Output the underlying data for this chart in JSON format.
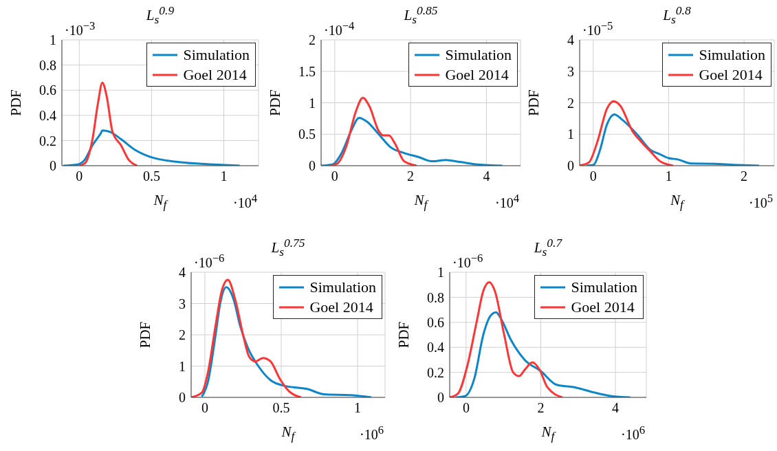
{
  "chart_data": [
    {
      "type": "line",
      "title": "L$_{s}$$^{0.9}$",
      "xlabel": "N$_{f}$",
      "ylabel": "PDF",
      "annotations": [
        "·10$^{−3}$",
        "·10$^{4}$"
      ],
      "xlim": [
        -0.12,
        1.24
      ],
      "xticks": [
        0,
        0.5,
        1
      ],
      "ylim": [
        0,
        1
      ],
      "yticks": [
        0,
        0.2,
        0.4,
        0.6,
        0.8,
        1
      ],
      "grid": true,
      "legend": "top right",
      "marker": "none",
      "line_style": "solid",
      "series": [
        {
          "name": "Simulation",
          "color": "#0b86c9",
          "x": [
            -0.11,
            -0.01,
            0.04,
            0.09,
            0.15,
            0.16,
            0.21,
            0.29,
            0.38,
            0.49,
            0.68,
            0.93,
            1.11
          ],
          "values": [
            0,
            0.01,
            0.05,
            0.16,
            0.26,
            0.28,
            0.27,
            0.21,
            0.13,
            0.07,
            0.03,
            0.01,
            0
          ]
        },
        {
          "name": "Goel 2014",
          "color": "#ff3535",
          "x": [
            0,
            0.04,
            0.09,
            0.13,
            0.16,
            0.19,
            0.23,
            0.29,
            0.34,
            0.4
          ],
          "values": [
            0,
            0.02,
            0.2,
            0.5,
            0.66,
            0.55,
            0.27,
            0.16,
            0.05,
            0
          ]
        }
      ]
    },
    {
      "type": "line",
      "title": "L$_{s}$$^{0.85}$",
      "xlabel": "N$_{f}$",
      "ylabel": "PDF",
      "annotations": [
        "·10$^{−4}$",
        "·10$^{4}$"
      ],
      "xlim": [
        -0.36,
        4.9
      ],
      "xticks": [
        0,
        2,
        4
      ],
      "ylim": [
        0,
        2
      ],
      "yticks": [
        0,
        0.5,
        1,
        1.5,
        2
      ],
      "grid": true,
      "legend": "top right",
      "marker": "none",
      "line_style": "solid",
      "series": [
        {
          "name": "Simulation",
          "color": "#0b86c9",
          "x": [
            -0.36,
            -0.06,
            0.18,
            0.43,
            0.64,
            0.85,
            1.16,
            1.46,
            1.83,
            2.2,
            2.56,
            2.93,
            3.3,
            3.77,
            4.42
          ],
          "values": [
            0,
            0.02,
            0.2,
            0.55,
            0.76,
            0.7,
            0.5,
            0.3,
            0.2,
            0.14,
            0.07,
            0.09,
            0.06,
            0.02,
            0
          ]
        },
        {
          "name": "Goel 2014",
          "color": "#ff3535",
          "x": [
            -0.12,
            0.06,
            0.3,
            0.55,
            0.74,
            0.91,
            1.16,
            1.28,
            1.43,
            1.59,
            1.83,
            2.16
          ],
          "values": [
            0,
            0.03,
            0.3,
            0.85,
            1.08,
            0.95,
            0.55,
            0.48,
            0.48,
            0.35,
            0.07,
            0
          ]
        }
      ]
    },
    {
      "type": "line",
      "title": "L$_{s}$$^{0.8}$",
      "xlabel": "N$_{f}$",
      "ylabel": "PDF",
      "annotations": [
        "·10$^{−5}$",
        "·10$^{5}$"
      ],
      "xlim": [
        -0.18,
        2.4
      ],
      "xticks": [
        0,
        1,
        2
      ],
      "ylim": [
        0,
        4
      ],
      "yticks": [
        0,
        1,
        2,
        3,
        4
      ],
      "grid": true,
      "legend": "top right",
      "marker": "none",
      "line_style": "solid",
      "series": [
        {
          "name": "Simulation",
          "color": "#0b86c9",
          "x": [
            -0.09,
            0,
            0.09,
            0.18,
            0.28,
            0.39,
            0.58,
            0.76,
            0.88,
            1,
            1.12,
            1.3,
            1.6,
            1.85,
            2.2
          ],
          "values": [
            0,
            0.02,
            0.5,
            1.3,
            1.63,
            1.45,
            1.0,
            0.5,
            0.37,
            0.24,
            0.2,
            0.07,
            0.06,
            0.03,
            0
          ]
        },
        {
          "name": "Goel 2014",
          "color": "#ff3535",
          "x": [
            -0.18,
            -0.06,
            0.06,
            0.18,
            0.27,
            0.36,
            0.52,
            0.64,
            0.76,
            0.88,
            1.06
          ],
          "values": [
            0.01,
            0.1,
            0.8,
            1.8,
            2.05,
            1.9,
            1.1,
            0.75,
            0.45,
            0.15,
            0
          ]
        }
      ]
    },
    {
      "type": "line",
      "title": "L$_{s}$$^{0.75}$",
      "xlabel": "N$_{f}$",
      "ylabel": "PDF",
      "annotations": [
        "·10$^{−6}$",
        "·10$^{6}$"
      ],
      "xlim": [
        -0.09,
        1.18
      ],
      "xticks": [
        0,
        0.5,
        1
      ],
      "ylim": [
        0,
        4
      ],
      "yticks": [
        0,
        1,
        2,
        3,
        4
      ],
      "grid": true,
      "legend": "top right",
      "marker": "none",
      "line_style": "solid",
      "series": [
        {
          "name": "Simulation",
          "color": "#0b86c9",
          "x": [
            -0.02,
            0.02,
            0.07,
            0.1,
            0.14,
            0.19,
            0.23,
            0.28,
            0.35,
            0.43,
            0.52,
            0.67,
            0.78,
            0.96,
            1.09
          ],
          "values": [
            0.02,
            0.5,
            2.0,
            3.0,
            3.52,
            3.1,
            2.3,
            1.6,
            1.0,
            0.55,
            0.37,
            0.27,
            0.1,
            0.07,
            0
          ]
        },
        {
          "name": "Goel 2014",
          "color": "#ff3535",
          "x": [
            -0.09,
            -0.02,
            0.02,
            0.07,
            0.11,
            0.15,
            0.2,
            0.25,
            0.29,
            0.33,
            0.38,
            0.43,
            0.49,
            0.55,
            0.63
          ],
          "values": [
            0,
            0.15,
            0.8,
            2.3,
            3.4,
            3.76,
            3.1,
            2.0,
            1.3,
            1.15,
            1.26,
            1.15,
            0.6,
            0.2,
            0
          ]
        }
      ]
    },
    {
      "type": "line",
      "title": "L$_{s}$$^{0.7}$",
      "xlabel": "N$_{f}$",
      "ylabel": "PDF",
      "annotations": [
        "·10$^{−6}$",
        "·10$^{6}$"
      ],
      "xlim": [
        -0.44,
        4.83
      ],
      "xticks": [
        0,
        2,
        4
      ],
      "ylim": [
        0,
        1
      ],
      "yticks": [
        0,
        0.2,
        0.4,
        0.6,
        0.8,
        1
      ],
      "grid": true,
      "legend": "top right",
      "marker": "none",
      "line_style": "solid",
      "series": [
        {
          "name": "Simulation",
          "color": "#0b86c9",
          "x": [
            -0.28,
            -0.03,
            0.22,
            0.46,
            0.65,
            0.8,
            0.95,
            1.2,
            1.57,
            2.0,
            2.43,
            2.92,
            3.42,
            3.9,
            4.4
          ],
          "values": [
            0,
            0.01,
            0.15,
            0.5,
            0.65,
            0.68,
            0.62,
            0.46,
            0.3,
            0.21,
            0.1,
            0.08,
            0.04,
            0.01,
            0
          ]
        },
        {
          "name": "Goel 2014",
          "color": "#ff3535",
          "x": [
            -0.44,
            -0.22,
            0.03,
            0.28,
            0.46,
            0.62,
            0.77,
            1.02,
            1.26,
            1.42,
            1.57,
            1.78,
            1.97,
            2.18,
            2.58
          ],
          "values": [
            0,
            0.03,
            0.25,
            0.6,
            0.85,
            0.92,
            0.85,
            0.5,
            0.2,
            0.17,
            0.22,
            0.28,
            0.22,
            0.08,
            0
          ]
        }
      ]
    }
  ]
}
